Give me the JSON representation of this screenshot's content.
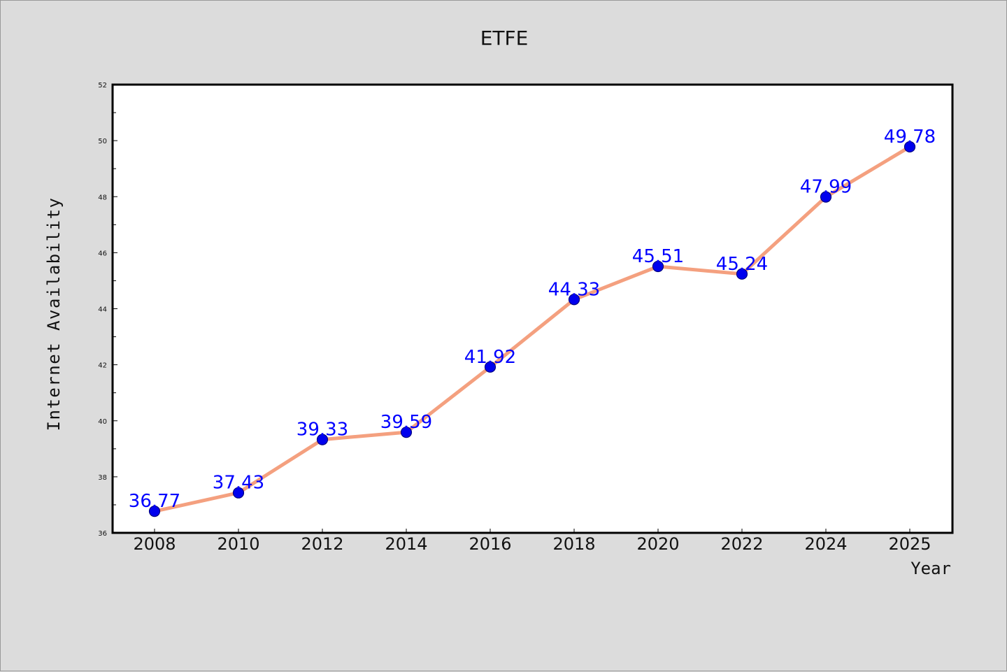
{
  "chart_data": {
    "type": "line",
    "title": "ETFE",
    "xlabel": "Year",
    "ylabel": "Internet Availability",
    "categories": [
      "2008",
      "2010",
      "2012",
      "2014",
      "2016",
      "2018",
      "2020",
      "2022",
      "2024",
      "2025"
    ],
    "series": [
      {
        "values": [
          36.77,
          37.43,
          39.33,
          39.59,
          41.92,
          44.33,
          45.51,
          45.24,
          47.99,
          49.78
        ]
      }
    ],
    "data_labels": [
      "36.77",
      "37.43",
      "39.33",
      "39.59",
      "41.92",
      "44.33",
      "45.51",
      "45.24",
      "47.99",
      "49.78"
    ],
    "ylim": [
      36,
      52
    ],
    "yticks": [
      36,
      38,
      40,
      42,
      44,
      46,
      48,
      50,
      52
    ],
    "grid": false,
    "colors": {
      "line": "#f4a07f",
      "marker": "#0000ee",
      "label": "#0000ff",
      "plot_background": "#ffffff",
      "figure_background": "#dcdcdc"
    }
  }
}
